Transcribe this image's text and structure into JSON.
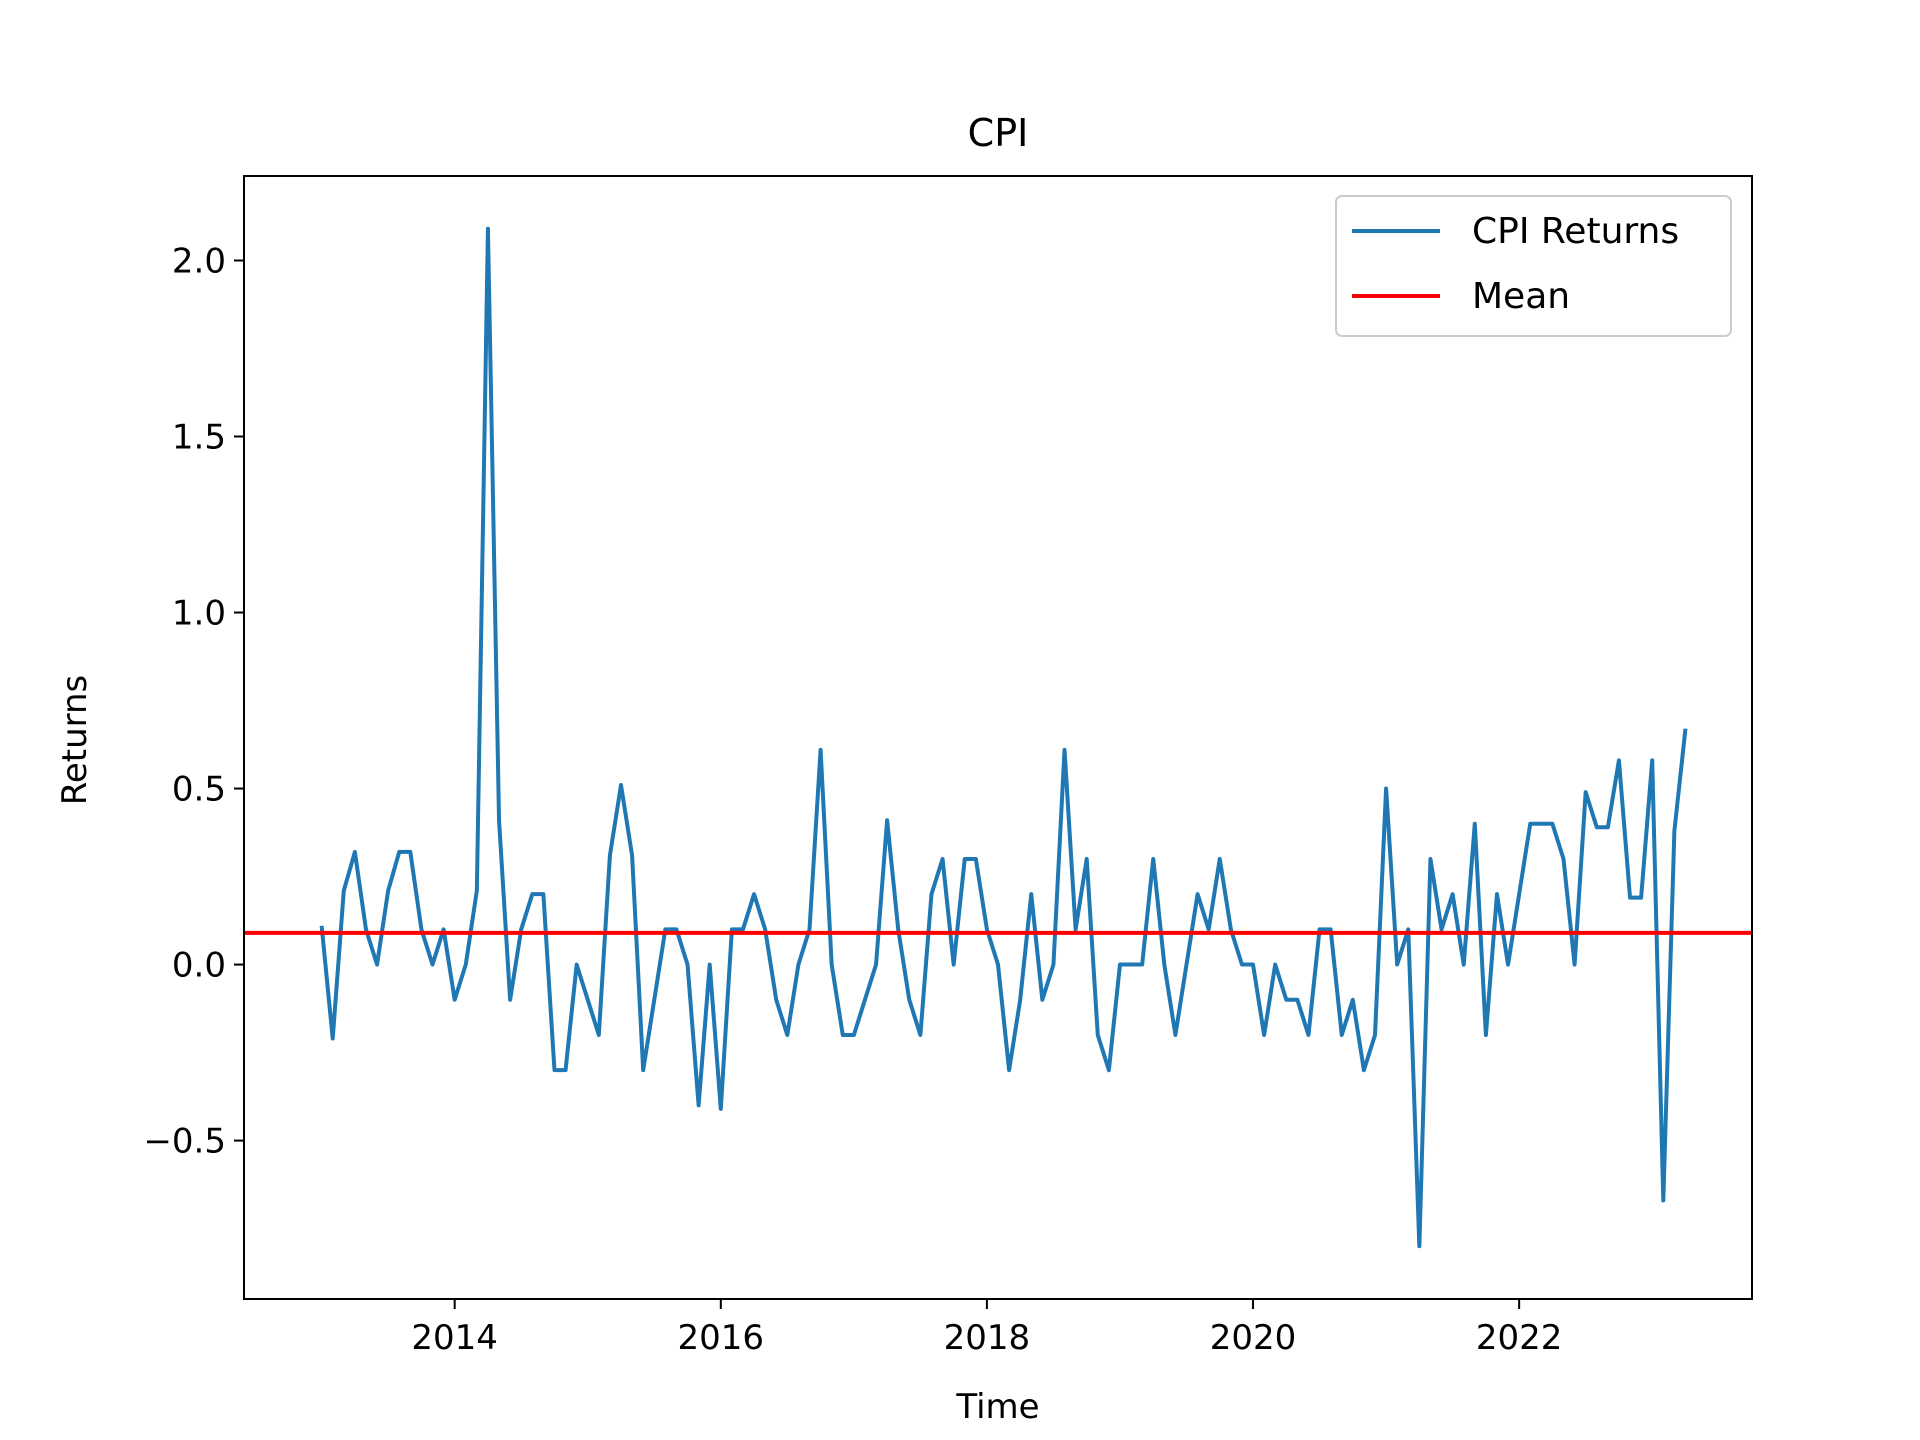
{
  "chart_data": {
    "type": "line",
    "title": "CPI",
    "xlabel": "Time",
    "ylabel": "Returns",
    "xlim": [
      "2012-06-01",
      "2023-10-01"
    ],
    "ylim": [
      -0.95,
      2.24
    ],
    "x_ticks": [
      {
        "value": "2014-01-01",
        "label": "2014"
      },
      {
        "value": "2016-01-01",
        "label": "2016"
      },
      {
        "value": "2018-01-01",
        "label": "2018"
      },
      {
        "value": "2020-01-01",
        "label": "2020"
      },
      {
        "value": "2022-01-01",
        "label": "2022"
      }
    ],
    "y_ticks": [
      {
        "value": -0.5,
        "label": "−0.5"
      },
      {
        "value": 0.0,
        "label": "0.0"
      },
      {
        "value": 0.5,
        "label": "0.5"
      },
      {
        "value": 1.0,
        "label": "1.0"
      },
      {
        "value": 1.5,
        "label": "1.5"
      },
      {
        "value": 2.0,
        "label": "2.0"
      }
    ],
    "grid": false,
    "legend_position": "top-right",
    "series": [
      {
        "name": "CPI Returns",
        "color": "#1f77b4",
        "start": "2013-01",
        "frequency": "monthly",
        "values": [
          0.11,
          -0.21,
          0.21,
          0.32,
          0.1,
          0.0,
          0.21,
          0.32,
          0.32,
          0.1,
          0.0,
          0.1,
          -0.1,
          0.0,
          0.21,
          2.09,
          0.41,
          -0.1,
          0.1,
          0.2,
          0.2,
          -0.3,
          -0.3,
          0.0,
          -0.1,
          -0.2,
          0.31,
          0.51,
          0.31,
          -0.3,
          -0.1,
          0.1,
          0.1,
          0.0,
          -0.4,
          0.0,
          -0.41,
          0.1,
          0.1,
          0.2,
          0.1,
          -0.1,
          -0.2,
          0.0,
          0.1,
          0.61,
          0.0,
          -0.2,
          -0.2,
          -0.1,
          0.0,
          0.41,
          0.1,
          -0.1,
          -0.2,
          0.2,
          0.3,
          0.0,
          0.3,
          0.3,
          0.1,
          0.0,
          -0.3,
          -0.1,
          0.2,
          -0.1,
          0.0,
          0.61,
          0.1,
          0.3,
          -0.2,
          -0.3,
          0.0,
          0.0,
          0.0,
          0.3,
          0.0,
          -0.2,
          0.0,
          0.2,
          0.1,
          0.3,
          0.1,
          0.0,
          0.0,
          -0.2,
          0.0,
          -0.1,
          -0.1,
          -0.2,
          0.1,
          0.1,
          -0.2,
          -0.1,
          -0.3,
          -0.2,
          0.5,
          0.0,
          0.1,
          -0.8,
          0.3,
          0.1,
          0.2,
          0.0,
          0.4,
          -0.2,
          0.2,
          0.0,
          0.2,
          0.4,
          0.4,
          0.4,
          0.3,
          0.0,
          0.49,
          0.39,
          0.39,
          0.58,
          0.19,
          0.19,
          0.58,
          -0.67,
          0.38,
          0.67
        ]
      },
      {
        "name": "Mean",
        "color": "#ff0000",
        "constant": 0.09
      }
    ]
  }
}
